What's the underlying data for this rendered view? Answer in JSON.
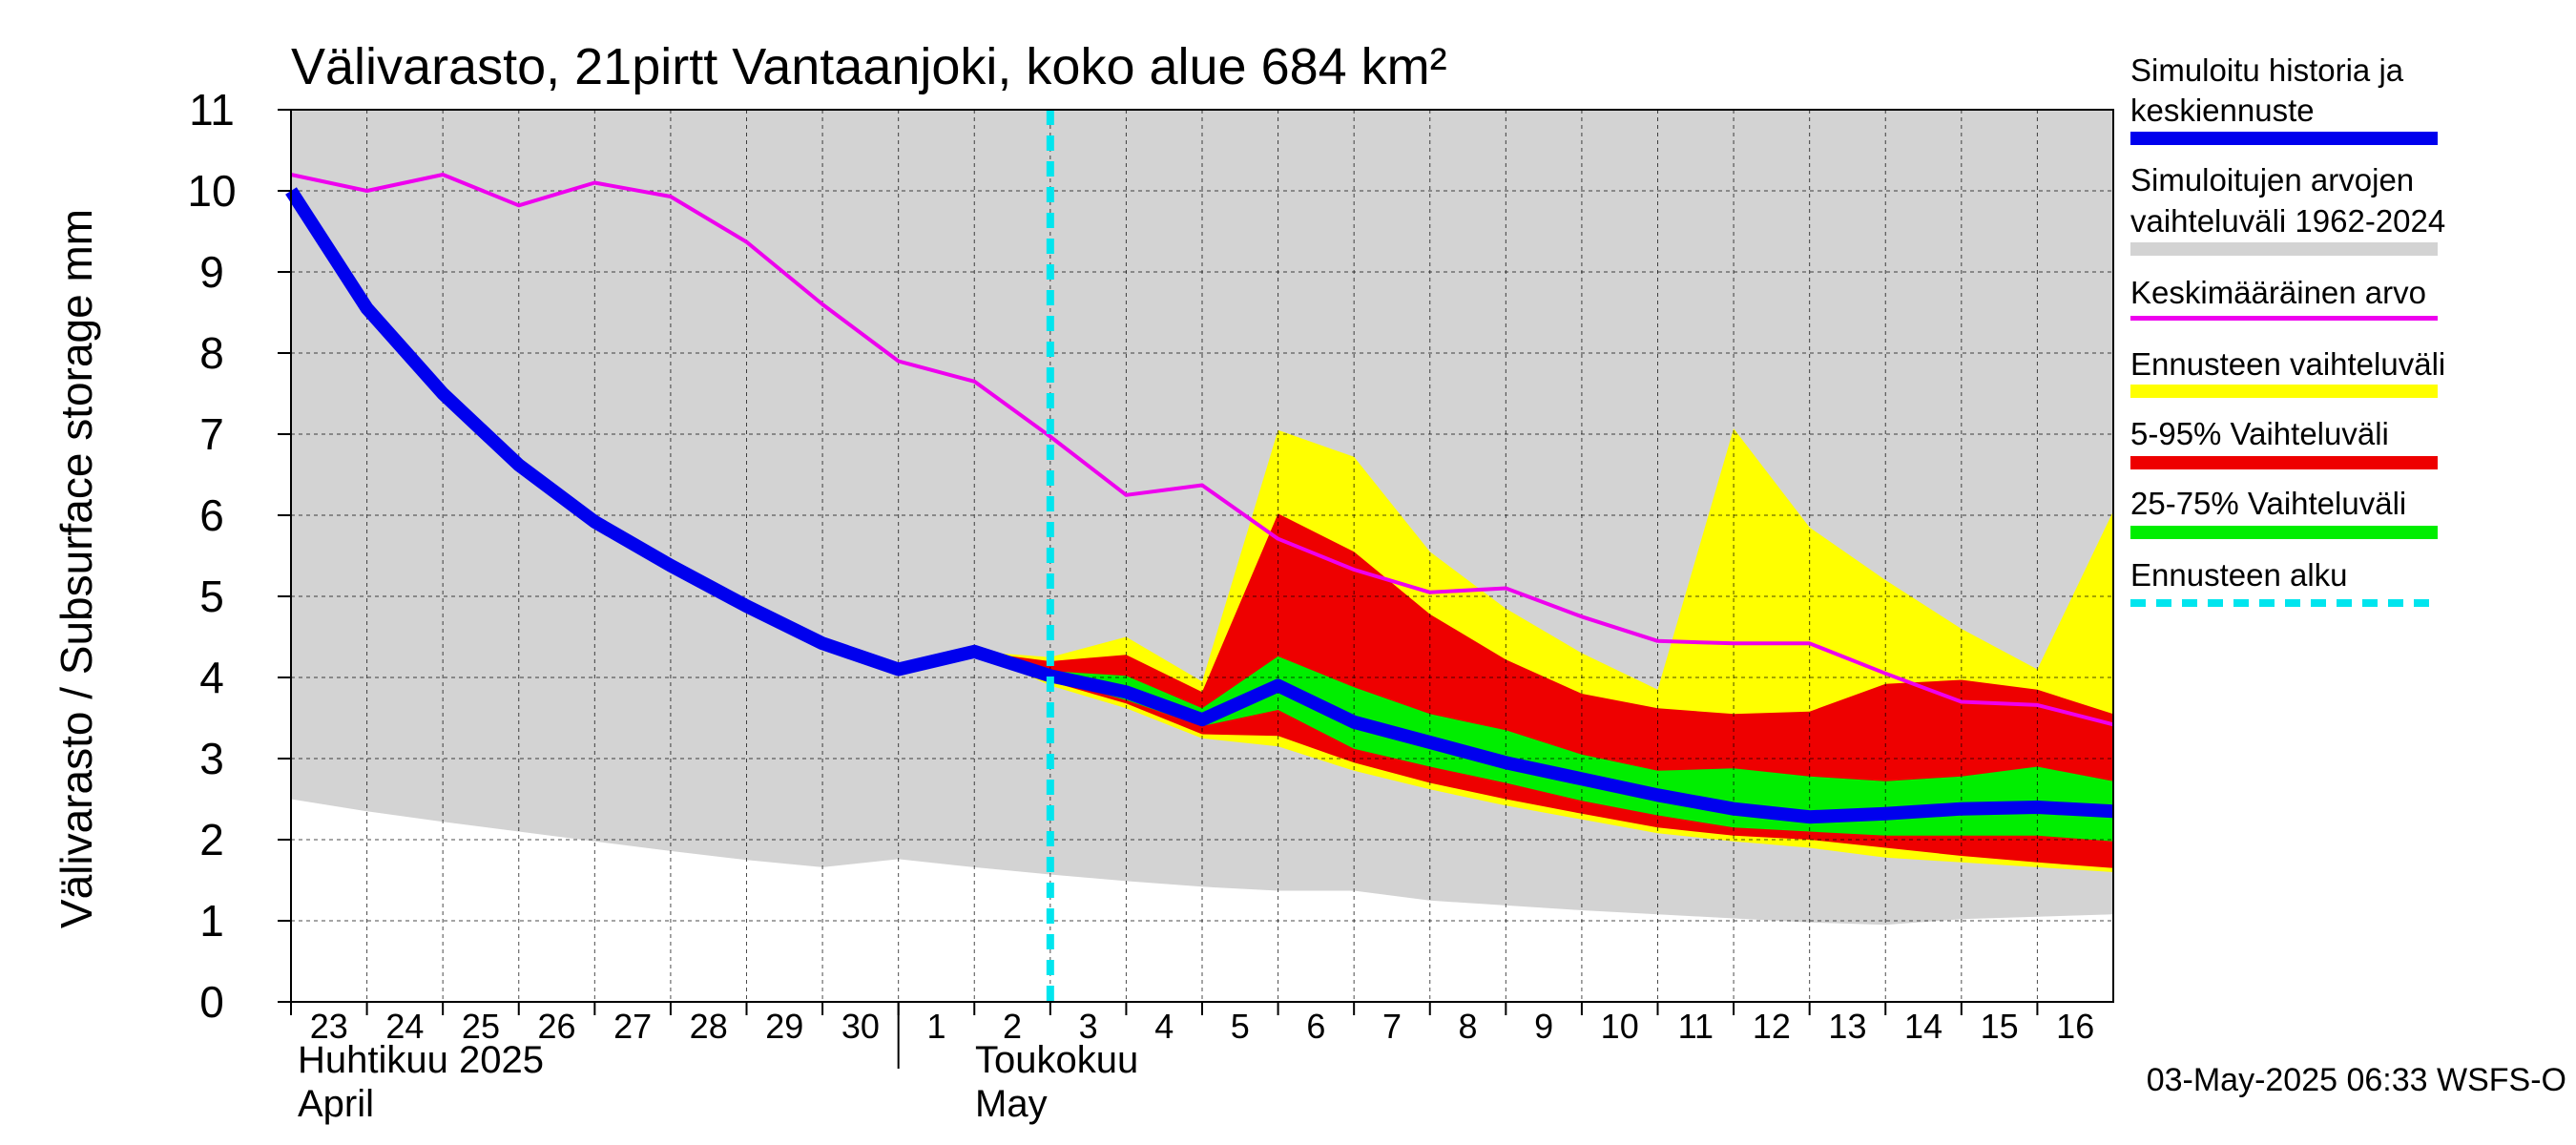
{
  "chart_data": {
    "type": "area",
    "title": "Välivarasto, 21pirtt Vantaanjoki, koko alue 684 km²",
    "ylabel": "Välivarasto / Subsurface storage  mm",
    "ylim": [
      0,
      11
    ],
    "y_ticks": [
      0,
      1,
      2,
      3,
      4,
      5,
      6,
      7,
      8,
      9,
      10,
      11
    ],
    "grid": true,
    "x_day_labels": [
      "23",
      "24",
      "25",
      "26",
      "27",
      "28",
      "29",
      "30",
      "1",
      "2",
      "3",
      "4",
      "5",
      "6",
      "7",
      "8",
      "9",
      "10",
      "11",
      "12",
      "13",
      "14",
      "15",
      "16"
    ],
    "x_dates": [
      "2025-04-23",
      "2025-04-24",
      "2025-04-25",
      "2025-04-26",
      "2025-04-27",
      "2025-04-28",
      "2025-04-29",
      "2025-04-30",
      "2025-05-01",
      "2025-05-02",
      "2025-05-03",
      "2025-05-04",
      "2025-05-05",
      "2025-05-06",
      "2025-05-07",
      "2025-05-08",
      "2025-05-09",
      "2025-05-10",
      "2025-05-11",
      "2025-05-12",
      "2025-05-13",
      "2025-05-14",
      "2025-05-15",
      "2025-05-16"
    ],
    "xlim": [
      "2025-04-23",
      "2025-05-17"
    ],
    "month_labels": [
      {
        "line1": "Huhtikuu  2025",
        "line2": "April"
      },
      {
        "line1": "Toukokuu",
        "line2": "May"
      }
    ],
    "month_boundary": "2025-05-01",
    "forecast_start": "2025-05-03",
    "footer": "03-May-2025 06:33 WSFS-O",
    "legend_position": "right",
    "legend": [
      {
        "label_line1": "Simuloitu historia ja",
        "label_line2": "keskiennuste",
        "color": "#0000ee",
        "style": "thick-line"
      },
      {
        "label_line1": "Simuloitujen arvojen",
        "label_line2": "vaihteluväli 1962-2024",
        "color": "#d3d3d3",
        "style": "band"
      },
      {
        "label_line1": "Keskimääräinen arvo",
        "label_line2": "",
        "color": "#ee00ee",
        "style": "line"
      },
      {
        "label_line1": "Ennusteen vaihteluväli",
        "label_line2": "",
        "color": "#ffff00",
        "style": "band"
      },
      {
        "label_line1": "5-95% Vaihteluväli",
        "label_line2": "",
        "color": "#ee0000",
        "style": "band"
      },
      {
        "label_line1": "25-75% Vaihteluväli",
        "label_line2": "",
        "color": "#00ee00",
        "style": "band"
      },
      {
        "label_line1": "Ennusteen alku",
        "label_line2": "",
        "color": "#00e5ee",
        "style": "dashed-line"
      }
    ],
    "series": {
      "historical_range": {
        "x": [
          "2025-04-23",
          "2025-04-24",
          "2025-04-25",
          "2025-04-26",
          "2025-04-27",
          "2025-04-28",
          "2025-04-29",
          "2025-04-30",
          "2025-05-01",
          "2025-05-02",
          "2025-05-03",
          "2025-05-04",
          "2025-05-05",
          "2025-05-06",
          "2025-05-07",
          "2025-05-08",
          "2025-05-09",
          "2025-05-10",
          "2025-05-11",
          "2025-05-12",
          "2025-05-13",
          "2025-05-14",
          "2025-05-15",
          "2025-05-16",
          "2025-05-17"
        ],
        "min": [
          2.5,
          2.35,
          2.22,
          2.1,
          1.98,
          1.86,
          1.75,
          1.66,
          1.76,
          1.66,
          1.57,
          1.49,
          1.42,
          1.37,
          1.37,
          1.25,
          1.19,
          1.13,
          1.08,
          1.03,
          0.98,
          0.95,
          1.02,
          1.05,
          1.08
        ],
        "max": [
          11,
          11,
          11,
          11,
          11,
          11,
          11,
          11,
          11,
          11,
          11,
          11,
          11,
          11,
          11,
          11,
          11,
          11,
          11,
          11,
          11,
          11,
          11,
          11,
          11
        ]
      },
      "mean": {
        "x": [
          "2025-04-23",
          "2025-04-24",
          "2025-04-25",
          "2025-04-26",
          "2025-04-27",
          "2025-04-28",
          "2025-04-29",
          "2025-04-30",
          "2025-05-01",
          "2025-05-02",
          "2025-05-03",
          "2025-05-04",
          "2025-05-05",
          "2025-05-06",
          "2025-05-07",
          "2025-05-08",
          "2025-05-09",
          "2025-05-10",
          "2025-05-11",
          "2025-05-12",
          "2025-05-13",
          "2025-05-14",
          "2025-05-15",
          "2025-05-16",
          "2025-05-17"
        ],
        "y": [
          10.2,
          10.0,
          10.2,
          9.82,
          10.1,
          9.93,
          9.37,
          8.6,
          7.9,
          7.65,
          6.97,
          6.25,
          6.37,
          5.71,
          5.33,
          5.05,
          5.1,
          4.75,
          4.45,
          4.42,
          4.42,
          4.05,
          3.7,
          3.66,
          3.42
        ]
      },
      "simulated_and_median_forecast": {
        "x": [
          "2025-04-23",
          "2025-04-24",
          "2025-04-25",
          "2025-04-26",
          "2025-04-27",
          "2025-04-28",
          "2025-04-29",
          "2025-04-30",
          "2025-05-01",
          "2025-05-02",
          "2025-05-03",
          "2025-05-04",
          "2025-05-05",
          "2025-05-06",
          "2025-05-07",
          "2025-05-08",
          "2025-05-09",
          "2025-05-10",
          "2025-05-11",
          "2025-05-12",
          "2025-05-13",
          "2025-05-14",
          "2025-05-15",
          "2025-05-16",
          "2025-05-17"
        ],
        "y": [
          10.0,
          8.55,
          7.5,
          6.62,
          5.92,
          5.38,
          4.88,
          4.42,
          4.1,
          4.32,
          4.02,
          3.82,
          3.48,
          3.9,
          3.45,
          3.2,
          2.95,
          2.75,
          2.55,
          2.38,
          2.28,
          2.32,
          2.38,
          2.4,
          2.35
        ]
      },
      "forecast_range": {
        "x": [
          "2025-05-02",
          "2025-05-03",
          "2025-05-04",
          "2025-05-05",
          "2025-05-06",
          "2025-05-07",
          "2025-05-08",
          "2025-05-09",
          "2025-05-10",
          "2025-05-11",
          "2025-05-12",
          "2025-05-13",
          "2025-05-14",
          "2025-05-15",
          "2025-05-16",
          "2025-05-17"
        ],
        "low": [
          4.32,
          3.9,
          3.62,
          3.25,
          3.15,
          2.85,
          2.62,
          2.42,
          2.25,
          2.08,
          1.98,
          1.9,
          1.78,
          1.72,
          1.66,
          1.6
        ],
        "high": [
          4.32,
          4.25,
          4.5,
          3.95,
          7.05,
          6.72,
          5.55,
          4.85,
          4.3,
          3.85,
          7.07,
          5.85,
          5.2,
          4.6,
          4.1,
          6.05
        ]
      },
      "p5_95": {
        "x": [
          "2025-05-02",
          "2025-05-03",
          "2025-05-04",
          "2025-05-05",
          "2025-05-06",
          "2025-05-07",
          "2025-05-08",
          "2025-05-09",
          "2025-05-10",
          "2025-05-11",
          "2025-05-12",
          "2025-05-13",
          "2025-05-14",
          "2025-05-15",
          "2025-05-16",
          "2025-05-17"
        ],
        "low": [
          4.32,
          3.95,
          3.68,
          3.3,
          3.28,
          2.95,
          2.7,
          2.5,
          2.32,
          2.15,
          2.05,
          2.0,
          1.9,
          1.8,
          1.72,
          1.65
        ],
        "high": [
          4.32,
          4.2,
          4.28,
          3.82,
          6.02,
          5.55,
          4.78,
          4.22,
          3.8,
          3.62,
          3.55,
          3.58,
          3.92,
          3.97,
          3.85,
          3.55
        ]
      },
      "p25_75": {
        "x": [
          "2025-05-02",
          "2025-05-03",
          "2025-05-04",
          "2025-05-05",
          "2025-05-06",
          "2025-05-07",
          "2025-05-08",
          "2025-05-09",
          "2025-05-10",
          "2025-05-11",
          "2025-05-12",
          "2025-05-13",
          "2025-05-14",
          "2025-05-15",
          "2025-05-16",
          "2025-05-17"
        ],
        "low": [
          4.32,
          3.98,
          3.72,
          3.4,
          3.6,
          3.12,
          2.9,
          2.7,
          2.48,
          2.3,
          2.15,
          2.1,
          2.05,
          2.05,
          2.05,
          1.98
        ],
        "high": [
          4.32,
          4.08,
          4.02,
          3.62,
          4.26,
          3.88,
          3.55,
          3.35,
          3.05,
          2.85,
          2.88,
          2.78,
          2.72,
          2.78,
          2.9,
          2.72
        ]
      }
    }
  }
}
